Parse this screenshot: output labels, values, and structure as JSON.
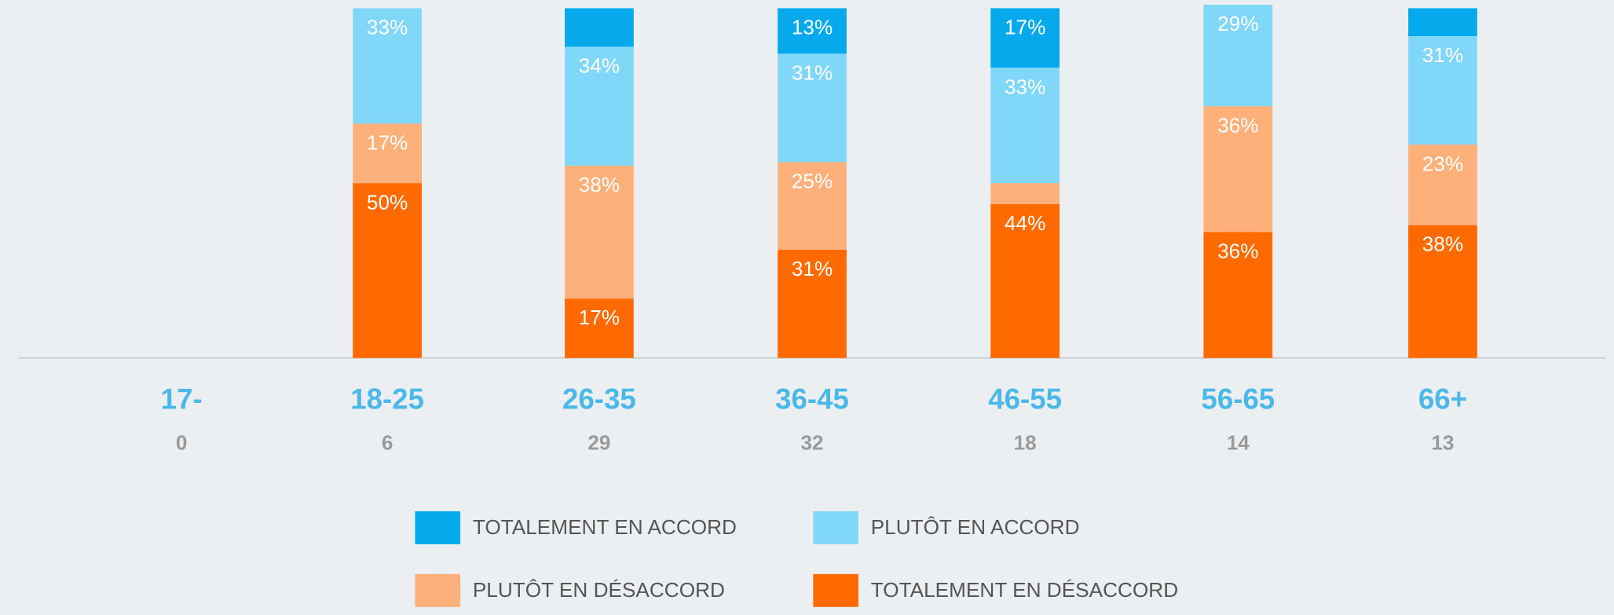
{
  "chart_data": {
    "type": "stacked_bar",
    "categories": [
      "17-",
      "18-25",
      "26-35",
      "36-45",
      "46-55",
      "56-65",
      "66+"
    ],
    "counts": [
      0,
      6,
      29,
      32,
      18,
      14,
      13
    ],
    "ylim": [
      0,
      100
    ],
    "series": [
      {
        "name": "TOTALEMENT EN ACCORD",
        "color": "#06a9ec",
        "values": [
          null,
          0,
          11,
          13,
          17,
          0,
          8
        ],
        "value_labels": [
          null,
          null,
          null,
          "13%",
          "17%",
          null,
          null
        ]
      },
      {
        "name": "PLUTÔT EN ACCORD",
        "color": "#80d7f8",
        "values": [
          null,
          33,
          34,
          31,
          33,
          29,
          31
        ],
        "value_labels": [
          null,
          "33%",
          "34%",
          "31%",
          "33%",
          "29%",
          "31%"
        ]
      },
      {
        "name": "PLUTÔT EN DÉSACCORD",
        "color": "#fdb07a",
        "values": [
          null,
          17,
          38,
          25,
          6,
          36,
          23
        ],
        "value_labels": [
          null,
          "17%",
          "38%",
          "25%",
          null,
          "36%",
          "23%"
        ]
      },
      {
        "name": "TOTALEMENT EN DÉSACCORD",
        "color": "#ff6a00",
        "values": [
          null,
          50,
          17,
          31,
          44,
          36,
          38
        ],
        "value_labels": [
          null,
          "50%",
          "17%",
          "31%",
          "44%",
          "36%",
          "38%"
        ]
      }
    ]
  }
}
